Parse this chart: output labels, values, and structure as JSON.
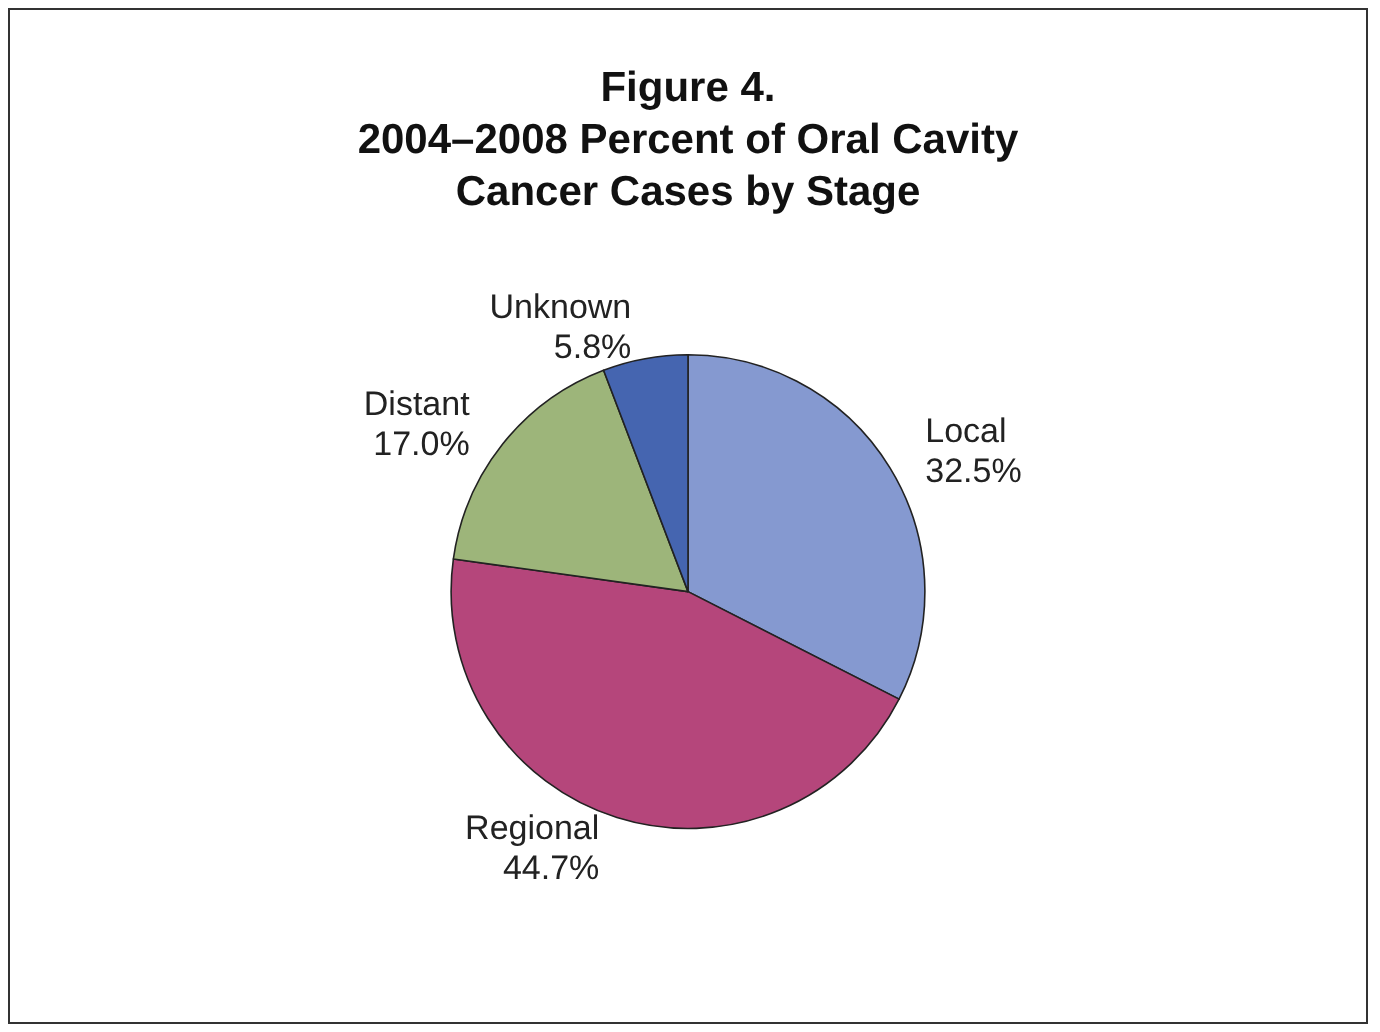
{
  "chart_data": {
    "type": "pie",
    "title": "Figure 4.\n2004–2008 Percent of Oral Cavity\nCancer Cases by Stage",
    "categories": [
      "Local",
      "Regional",
      "Distant",
      "Unknown"
    ],
    "values": [
      32.5,
      44.7,
      17.0,
      5.8
    ],
    "colors": [
      "#8599d0",
      "#b5467b",
      "#9db57a",
      "#4565b0"
    ],
    "value_labels": [
      "32.5%",
      "44.7%",
      "17.0%",
      "5.8%"
    ],
    "legend": false
  }
}
